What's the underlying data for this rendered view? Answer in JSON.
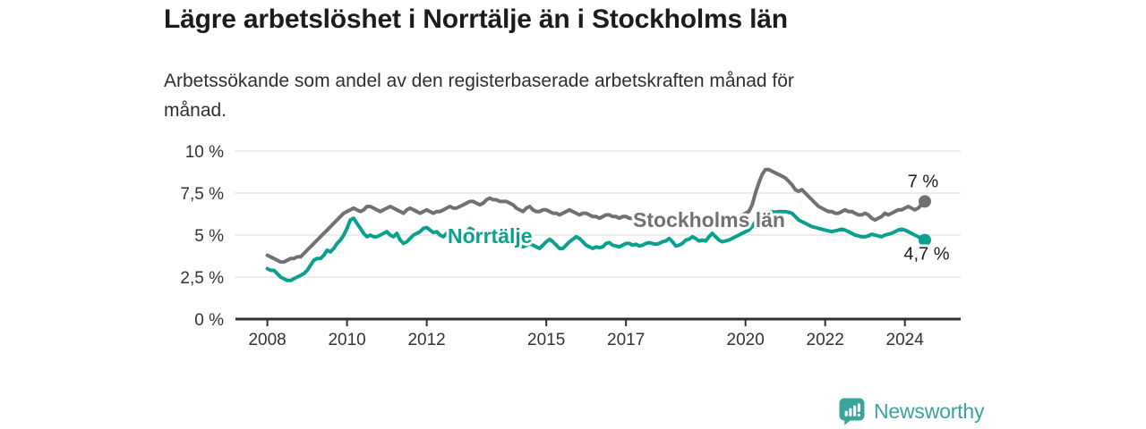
{
  "header": {
    "title": "Lägre arbetslöshet i Norrtälje än i Stockholms län",
    "subtitle": "Arbetssökande som andel av den registerbaserade arbetskraften månad för månad.",
    "subtitle_lines": [
      "Arbetssökande som andel av den registerbaserade arbetskraften månad för",
      "månad."
    ]
  },
  "colors": {
    "title_text": "#1c1c1e",
    "axis_text": "#333333",
    "gridline": "#d9d9d9",
    "axis_line": "#2f2f2f",
    "stockholm_gray": "#717173",
    "norrtalje_teal": "#09a08d",
    "brand_teal": "#3aa39a",
    "background": "#ffffff"
  },
  "chart_data": {
    "type": "line",
    "title": "Lägre arbetslöshet i Norrtälje än i Stockholms län",
    "subtitle": "Arbetssökande som andel av den registerbaserade arbetskraften månad för månad.",
    "grid": true,
    "legend": "inline-labels",
    "x_unit": "year (monthly points, Jan 2008 – Jul 2024)",
    "ylim": [
      0,
      10
    ],
    "xlim": [
      2007.2,
      2025.4
    ],
    "y_ticks": [
      {
        "value": 0,
        "label": "0 %"
      },
      {
        "value": 2.5,
        "label": "2,5 %"
      },
      {
        "value": 5,
        "label": "5 %"
      },
      {
        "value": 7.5,
        "label": "7,5 %"
      },
      {
        "value": 10,
        "label": "10 %"
      }
    ],
    "x_ticks": [
      {
        "value": 2008,
        "label": "2008"
      },
      {
        "value": 2010,
        "label": "2010"
      },
      {
        "value": 2012,
        "label": "2012"
      },
      {
        "value": 2015,
        "label": "2015"
      },
      {
        "value": 2017,
        "label": "2017"
      },
      {
        "value": 2020,
        "label": "2020"
      },
      {
        "value": 2022,
        "label": "2022"
      },
      {
        "value": 2024,
        "label": "2024"
      }
    ],
    "series": [
      {
        "name": "Stockholms län",
        "color": "#717173",
        "x_start": 2008.0,
        "x_step_months": 1,
        "end_value_label": "7 %",
        "values": [
          3.8,
          3.7,
          3.6,
          3.5,
          3.4,
          3.4,
          3.5,
          3.6,
          3.6,
          3.7,
          3.7,
          3.9,
          4.1,
          4.3,
          4.5,
          4.7,
          4.9,
          5.1,
          5.3,
          5.5,
          5.7,
          5.9,
          6.1,
          6.3,
          6.4,
          6.5,
          6.6,
          6.5,
          6.4,
          6.5,
          6.7,
          6.7,
          6.6,
          6.5,
          6.4,
          6.5,
          6.6,
          6.7,
          6.6,
          6.5,
          6.4,
          6.3,
          6.5,
          6.6,
          6.5,
          6.4,
          6.3,
          6.4,
          6.5,
          6.4,
          6.3,
          6.4,
          6.4,
          6.5,
          6.6,
          6.7,
          6.6,
          6.6,
          6.7,
          6.8,
          6.9,
          7.0,
          7.0,
          6.9,
          6.8,
          6.9,
          7.1,
          7.2,
          7.1,
          7.1,
          7.0,
          7.0,
          7.0,
          6.9,
          6.8,
          6.6,
          6.5,
          6.4,
          6.6,
          6.7,
          6.5,
          6.4,
          6.4,
          6.5,
          6.5,
          6.4,
          6.3,
          6.3,
          6.2,
          6.3,
          6.4,
          6.5,
          6.4,
          6.3,
          6.2,
          6.3,
          6.3,
          6.2,
          6.1,
          6.1,
          6.0,
          6.1,
          6.2,
          6.2,
          6.1,
          6.1,
          6.0,
          6.1,
          6.1,
          6.0,
          6.0,
          5.9,
          5.9,
          6.0,
          6.1,
          6.1,
          6.0,
          6.0,
          5.9,
          6.0,
          6.0,
          5.9,
          5.9,
          5.8,
          5.8,
          5.9,
          6.0,
          6.0,
          5.9,
          5.9,
          5.8,
          5.9,
          5.9,
          5.9,
          5.8,
          5.8,
          5.9,
          6.0,
          6.1,
          6.1,
          6.0,
          6.0,
          6.1,
          6.2,
          6.3,
          6.4,
          6.8,
          7.5,
          8.1,
          8.6,
          8.9,
          8.9,
          8.8,
          8.7,
          8.6,
          8.5,
          8.4,
          8.2,
          8.0,
          7.7,
          7.6,
          7.7,
          7.5,
          7.3,
          7.1,
          6.9,
          6.7,
          6.6,
          6.5,
          6.4,
          6.4,
          6.3,
          6.3,
          6.4,
          6.5,
          6.4,
          6.4,
          6.3,
          6.2,
          6.2,
          6.3,
          6.2,
          6.0,
          5.9,
          6.0,
          6.1,
          6.3,
          6.2,
          6.3,
          6.4,
          6.5,
          6.5,
          6.6,
          6.7,
          6.6,
          6.5,
          6.6,
          6.8,
          7.0
        ]
      },
      {
        "name": "Norrtälje",
        "color": "#09a08d",
        "x_start": 2008.0,
        "x_step_months": 1,
        "end_value_label": "4,7 %",
        "values": [
          3.0,
          2.9,
          2.9,
          2.7,
          2.5,
          2.4,
          2.3,
          2.3,
          2.4,
          2.5,
          2.6,
          2.7,
          2.9,
          3.2,
          3.5,
          3.6,
          3.6,
          3.8,
          4.1,
          4.0,
          4.2,
          4.5,
          4.7,
          5.0,
          5.4,
          5.9,
          6.0,
          5.7,
          5.4,
          5.1,
          4.9,
          5.0,
          4.9,
          4.9,
          5.0,
          5.1,
          5.2,
          5.0,
          4.9,
          5.1,
          4.7,
          4.5,
          4.6,
          4.8,
          5.0,
          5.1,
          5.2,
          5.4,
          5.45,
          5.3,
          5.15,
          5.2,
          5.0,
          4.9,
          5.1,
          5.3,
          5.2,
          5.0,
          4.9,
          5.0,
          5.2,
          5.4,
          5.3,
          5.1,
          5.0,
          4.9,
          5.0,
          5.1,
          5.0,
          4.9,
          4.8,
          4.9,
          5.0,
          4.9,
          4.8,
          4.6,
          4.4,
          4.3,
          4.4,
          4.5,
          4.4,
          4.3,
          4.2,
          4.4,
          4.6,
          4.75,
          4.6,
          4.4,
          4.2,
          4.2,
          4.4,
          4.6,
          4.75,
          4.9,
          4.8,
          4.6,
          4.4,
          4.3,
          4.2,
          4.3,
          4.25,
          4.3,
          4.5,
          4.55,
          4.4,
          4.35,
          4.3,
          4.4,
          4.5,
          4.5,
          4.4,
          4.45,
          4.35,
          4.4,
          4.5,
          4.55,
          4.5,
          4.45,
          4.5,
          4.6,
          4.65,
          4.8,
          4.6,
          4.35,
          4.4,
          4.5,
          4.7,
          4.75,
          4.9,
          4.8,
          4.65,
          4.7,
          4.65,
          4.9,
          5.1,
          4.9,
          4.7,
          4.6,
          4.65,
          4.7,
          4.8,
          4.9,
          5.0,
          5.1,
          5.2,
          5.3,
          5.5,
          5.8,
          6.0,
          6.2,
          6.35,
          6.4,
          6.4,
          6.35,
          6.4,
          6.4,
          6.4,
          6.35,
          6.3,
          6.1,
          5.9,
          5.8,
          5.7,
          5.6,
          5.5,
          5.45,
          5.4,
          5.35,
          5.3,
          5.25,
          5.2,
          5.25,
          5.3,
          5.35,
          5.3,
          5.2,
          5.1,
          5.0,
          4.95,
          4.9,
          4.9,
          4.95,
          5.05,
          5.0,
          4.95,
          4.9,
          5.0,
          5.05,
          5.1,
          5.2,
          5.3,
          5.35,
          5.3,
          5.2,
          5.1,
          5.0,
          4.9,
          4.8,
          4.7
        ]
      }
    ]
  },
  "footer": {
    "brand_label": "Newsworthy",
    "brand_color": "#3aa39a",
    "brand_icon": "speech-bubble-bar-chart-exclamation"
  }
}
